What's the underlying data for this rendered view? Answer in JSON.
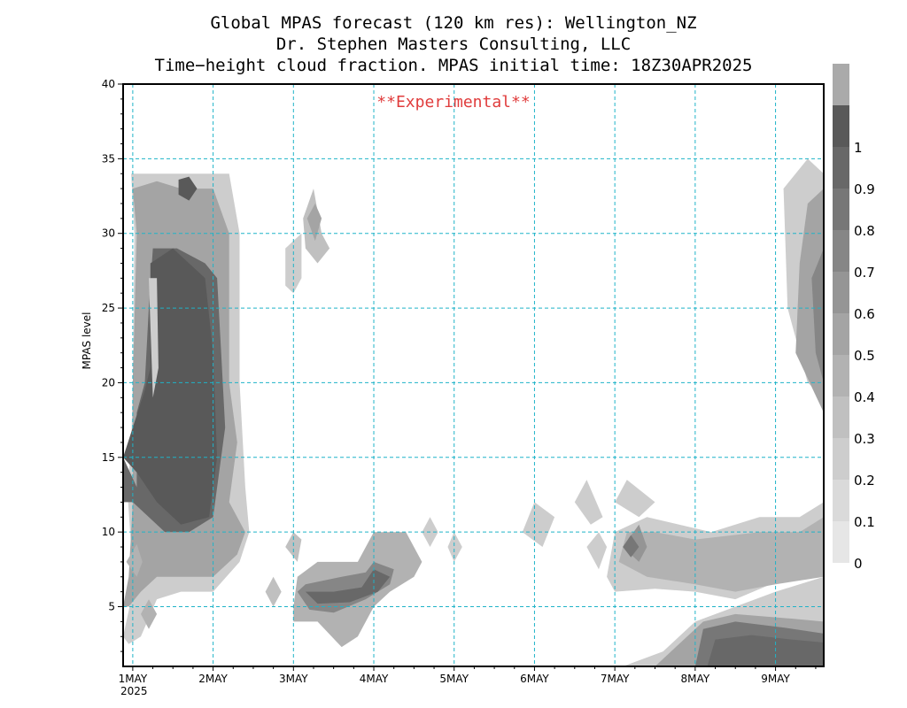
{
  "titles": [
    "Global MPAS forecast (120 km res): Wellington_NZ",
    "Dr. Stephen Masters Consulting, LLC",
    "Time−height cloud fraction.   MPAS initial time: 18Z30APR2025"
  ],
  "experimental_label": "**Experimental**",
  "chart_data": {
    "type": "heatmap",
    "ylabel": "MPAS level",
    "xlim": [
      0.88,
      9.6
    ],
    "ylim": [
      1,
      40
    ],
    "x_ticks": [
      1,
      2,
      3,
      4,
      5,
      6,
      7,
      8,
      9
    ],
    "x_tick_labels": [
      "1MAY",
      "2MAY",
      "3MAY",
      "4MAY",
      "5MAY",
      "6MAY",
      "7MAY",
      "8MAY",
      "9MAY"
    ],
    "x_year_label": "2025",
    "y_ticks": [
      5,
      10,
      15,
      20,
      25,
      30,
      35,
      40
    ],
    "grid": true,
    "colorbar": {
      "levels": [
        0,
        0.1,
        0.2,
        0.3,
        0.4,
        0.5,
        0.6,
        0.7,
        0.8,
        0.9,
        1
      ],
      "labels": [
        "0",
        "0.1",
        "0.2",
        "0.3",
        "0.4",
        "0.5",
        "0.6",
        "0.7",
        "0.8",
        "0.9",
        "1"
      ],
      "colors": [
        "#e6e6e6",
        "#dadada",
        "#cdcdcd",
        "#c0c0c0",
        "#b2b2b2",
        "#a4a4a4",
        "#959595",
        "#868686",
        "#777777",
        "#686868",
        "#595959",
        "#aaaaaa"
      ]
    },
    "regions": [
      {
        "level": 0.15,
        "points": [
          [
            0.88,
            3
          ],
          [
            0.96,
            5
          ],
          [
            0.98,
            9
          ],
          [
            0.93,
            13
          ],
          [
            0.98,
            15.5
          ],
          [
            1.0,
            20
          ],
          [
            1.02,
            30
          ],
          [
            0.98,
            34
          ],
          [
            1.3,
            34
          ],
          [
            1.6,
            34
          ],
          [
            2.2,
            34
          ],
          [
            2.33,
            30
          ],
          [
            2.33,
            20
          ],
          [
            2.4,
            13
          ],
          [
            2.45,
            10
          ],
          [
            2.33,
            8
          ],
          [
            2.0,
            6
          ],
          [
            1.6,
            6
          ],
          [
            1.3,
            5.5
          ],
          [
            1.1,
            3
          ],
          [
            0.95,
            2.5
          ]
        ]
      },
      {
        "level": 0.45,
        "points": [
          [
            0.88,
            5
          ],
          [
            0.95,
            7
          ],
          [
            1.0,
            12
          ],
          [
            1.0,
            20
          ],
          [
            1.05,
            30
          ],
          [
            1.0,
            33
          ],
          [
            1.3,
            33.5
          ],
          [
            1.6,
            33
          ],
          [
            2.0,
            33
          ],
          [
            2.2,
            30
          ],
          [
            2.2,
            20
          ],
          [
            2.3,
            16
          ],
          [
            2.2,
            12
          ],
          [
            2.4,
            10
          ],
          [
            2.3,
            8.5
          ],
          [
            2.0,
            7
          ],
          [
            1.6,
            7
          ],
          [
            1.3,
            7
          ],
          [
            1.1,
            6
          ],
          [
            0.95,
            5
          ]
        ]
      },
      {
        "level": 0.85,
        "points": [
          [
            0.88,
            15
          ],
          [
            1.05,
            13
          ],
          [
            1.05,
            18
          ],
          [
            1.15,
            20
          ],
          [
            1.2,
            25
          ],
          [
            1.25,
            29
          ],
          [
            1.55,
            29
          ],
          [
            1.9,
            28
          ],
          [
            2.05,
            27
          ],
          [
            2.1,
            22
          ],
          [
            2.15,
            17
          ],
          [
            2.0,
            11
          ],
          [
            1.7,
            10
          ],
          [
            1.4,
            10
          ],
          [
            1.2,
            11
          ],
          [
            1.0,
            12
          ],
          [
            0.88,
            12
          ]
        ]
      },
      {
        "level": 0.95,
        "points": [
          [
            0.88,
            15
          ],
          [
            1.15,
            19.5
          ],
          [
            1.22,
            21
          ],
          [
            1.22,
            28
          ],
          [
            1.5,
            29
          ],
          [
            1.9,
            27
          ],
          [
            2.0,
            22
          ],
          [
            2.05,
            15
          ],
          [
            1.95,
            11
          ],
          [
            1.6,
            10.5
          ],
          [
            1.3,
            12
          ],
          [
            1.05,
            14
          ]
        ]
      },
      {
        "level": 0.95,
        "points": [
          [
            1.57,
            33.6
          ],
          [
            1.7,
            33.8
          ],
          [
            1.8,
            33
          ],
          [
            1.7,
            32.2
          ],
          [
            1.57,
            32.6
          ]
        ]
      },
      {
        "level": 0.15,
        "points": [
          [
            1.2,
            27
          ],
          [
            1.25,
            19
          ],
          [
            1.32,
            21
          ],
          [
            1.3,
            27
          ]
        ]
      },
      {
        "level": 0.35,
        "points": [
          [
            0.92,
            8
          ],
          [
            1.05,
            9.2
          ],
          [
            1.12,
            8
          ],
          [
            1.05,
            7
          ]
        ]
      },
      {
        "level": 0.35,
        "points": [
          [
            1.1,
            4.5
          ],
          [
            1.2,
            3.5
          ],
          [
            1.3,
            4.5
          ],
          [
            1.2,
            5.5
          ]
        ]
      },
      {
        "level": 0.25,
        "points": [
          [
            2.65,
            6
          ],
          [
            2.75,
            5
          ],
          [
            2.85,
            6
          ],
          [
            2.75,
            7
          ]
        ]
      },
      {
        "level": 0.15,
        "points": [
          [
            2.9,
            29
          ],
          [
            3.1,
            30
          ],
          [
            3.1,
            27
          ],
          [
            3.0,
            26
          ],
          [
            2.9,
            26.5
          ]
        ]
      },
      {
        "level": 0.25,
        "points": [
          [
            3.12,
            31
          ],
          [
            3.25,
            33
          ],
          [
            3.35,
            30
          ],
          [
            3.45,
            29
          ],
          [
            3.3,
            28
          ],
          [
            3.15,
            29
          ]
        ]
      },
      {
        "level": 0.45,
        "points": [
          [
            3.17,
            31
          ],
          [
            3.27,
            32
          ],
          [
            3.35,
            31
          ],
          [
            3.27,
            29.5
          ]
        ]
      },
      {
        "level": 0.25,
        "points": [
          [
            2.9,
            9
          ],
          [
            3.05,
            8
          ],
          [
            3.1,
            9.5
          ],
          [
            3.0,
            10
          ]
        ]
      },
      {
        "level": 0.35,
        "points": [
          [
            3.0,
            5
          ],
          [
            3.05,
            7
          ],
          [
            3.3,
            8
          ],
          [
            3.8,
            8
          ],
          [
            4.0,
            10
          ],
          [
            4.4,
            10
          ],
          [
            4.6,
            8
          ],
          [
            4.5,
            7
          ],
          [
            4.2,
            6
          ],
          [
            4.0,
            5
          ],
          [
            3.8,
            3
          ],
          [
            3.6,
            2.3
          ],
          [
            3.3,
            4
          ],
          [
            3.0,
            4
          ]
        ]
      },
      {
        "level": 0.65,
        "points": [
          [
            3.05,
            6
          ],
          [
            3.15,
            6.5
          ],
          [
            3.6,
            7
          ],
          [
            3.9,
            7.3
          ],
          [
            4.0,
            8
          ],
          [
            4.25,
            7.5
          ],
          [
            4.2,
            6.5
          ],
          [
            3.9,
            5.5
          ],
          [
            3.5,
            4.6
          ],
          [
            3.2,
            4.8
          ]
        ]
      },
      {
        "level": 0.85,
        "points": [
          [
            3.15,
            6
          ],
          [
            3.5,
            6
          ],
          [
            3.85,
            6.3
          ],
          [
            4.0,
            7.5
          ],
          [
            4.2,
            7
          ],
          [
            4.05,
            6
          ],
          [
            3.7,
            5.3
          ],
          [
            3.3,
            5.2
          ]
        ]
      },
      {
        "level": 0.15,
        "points": [
          [
            4.6,
            10
          ],
          [
            4.7,
            11
          ],
          [
            4.8,
            10
          ],
          [
            4.7,
            9
          ]
        ]
      },
      {
        "level": 0.15,
        "points": [
          [
            4.92,
            9
          ],
          [
            5.0,
            10
          ],
          [
            5.1,
            9
          ],
          [
            5.0,
            8
          ]
        ]
      },
      {
        "level": 0.15,
        "points": [
          [
            5.85,
            10
          ],
          [
            6.0,
            12
          ],
          [
            6.25,
            11
          ],
          [
            6.1,
            9
          ]
        ]
      },
      {
        "level": 0.15,
        "points": [
          [
            6.5,
            12
          ],
          [
            6.65,
            13.5
          ],
          [
            6.85,
            11
          ],
          [
            6.7,
            10.5
          ]
        ]
      },
      {
        "level": 0.15,
        "points": [
          [
            7.0,
            12
          ],
          [
            7.15,
            13.5
          ],
          [
            7.5,
            12
          ],
          [
            7.3,
            11
          ]
        ]
      },
      {
        "level": 0.15,
        "points": [
          [
            6.65,
            9
          ],
          [
            6.8,
            10
          ],
          [
            6.9,
            9
          ],
          [
            6.8,
            7.5
          ]
        ]
      },
      {
        "level": 0.15,
        "points": [
          [
            6.9,
            7
          ],
          [
            7.0,
            10
          ],
          [
            7.4,
            11
          ],
          [
            7.8,
            10.5
          ],
          [
            8.2,
            10
          ],
          [
            8.8,
            11
          ],
          [
            9.3,
            11
          ],
          [
            9.6,
            12
          ],
          [
            9.6,
            8
          ],
          [
            8.5,
            5.5
          ],
          [
            8.0,
            6
          ],
          [
            7.5,
            6.2
          ],
          [
            7.0,
            6
          ]
        ]
      },
      {
        "level": 0.35,
        "points": [
          [
            7.05,
            8
          ],
          [
            7.15,
            10
          ],
          [
            7.5,
            10
          ],
          [
            8.0,
            9.5
          ],
          [
            8.8,
            10
          ],
          [
            9.3,
            10
          ],
          [
            9.6,
            11
          ],
          [
            9.6,
            7
          ],
          [
            9.0,
            6.5
          ],
          [
            8.5,
            6
          ],
          [
            8.0,
            6.5
          ],
          [
            7.4,
            7
          ]
        ]
      },
      {
        "level": 0.55,
        "points": [
          [
            7.1,
            9
          ],
          [
            7.3,
            10.5
          ],
          [
            7.4,
            9
          ],
          [
            7.3,
            8
          ]
        ]
      },
      {
        "level": 0.75,
        "points": [
          [
            7.1,
            9
          ],
          [
            7.2,
            9.8
          ],
          [
            7.3,
            9
          ],
          [
            7.2,
            8.3
          ]
        ]
      },
      {
        "level": 0.15,
        "points": [
          [
            7.1,
            1
          ],
          [
            7.6,
            2
          ],
          [
            8.0,
            4
          ],
          [
            8.5,
            5
          ],
          [
            9.0,
            6
          ],
          [
            9.6,
            7
          ],
          [
            9.6,
            1
          ]
        ]
      },
      {
        "level": 0.45,
        "points": [
          [
            7.5,
            1
          ],
          [
            7.7,
            2
          ],
          [
            8.1,
            4
          ],
          [
            8.5,
            4.5
          ],
          [
            9.2,
            4.2
          ],
          [
            9.6,
            4
          ],
          [
            9.6,
            1
          ]
        ]
      },
      {
        "level": 0.75,
        "points": [
          [
            8.0,
            1
          ],
          [
            8.1,
            3.5
          ],
          [
            8.5,
            4
          ],
          [
            9.1,
            3.6
          ],
          [
            9.6,
            3.2
          ],
          [
            9.6,
            1
          ]
        ]
      },
      {
        "level": 0.85,
        "points": [
          [
            8.15,
            1
          ],
          [
            8.25,
            2.8
          ],
          [
            8.7,
            3.1
          ],
          [
            9.2,
            2.8
          ],
          [
            9.6,
            2.6
          ],
          [
            9.6,
            1
          ]
        ]
      },
      {
        "level": 0.15,
        "points": [
          [
            9.6,
            34
          ],
          [
            9.4,
            35
          ],
          [
            9.1,
            33
          ],
          [
            9.15,
            25
          ],
          [
            9.4,
            20
          ],
          [
            9.6,
            19
          ]
        ]
      },
      {
        "level": 0.45,
        "points": [
          [
            9.6,
            33
          ],
          [
            9.4,
            32
          ],
          [
            9.3,
            28
          ],
          [
            9.25,
            22
          ],
          [
            9.6,
            18
          ]
        ]
      },
      {
        "level": 0.65,
        "points": [
          [
            9.6,
            29
          ],
          [
            9.45,
            27
          ],
          [
            9.5,
            22
          ],
          [
            9.6,
            20
          ]
        ]
      }
    ]
  }
}
